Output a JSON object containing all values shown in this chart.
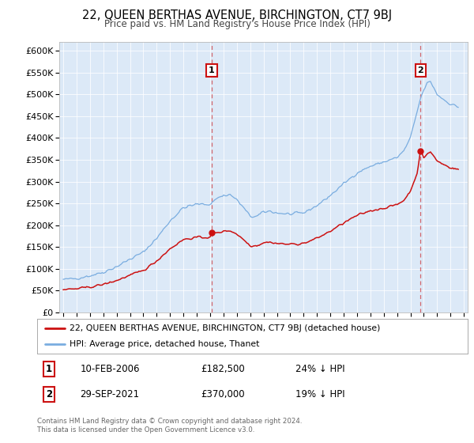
{
  "title": "22, QUEEN BERTHAS AVENUE, BIRCHINGTON, CT7 9BJ",
  "subtitle": "Price paid vs. HM Land Registry's House Price Index (HPI)",
  "background_color": "#dce9f7",
  "ylim": [
    0,
    620000
  ],
  "yticks": [
    0,
    50000,
    100000,
    150000,
    200000,
    250000,
    300000,
    350000,
    400000,
    450000,
    500000,
    550000,
    600000
  ],
  "hpi_color": "#7aade0",
  "price_color": "#cc1111",
  "transaction1": {
    "date": "10-FEB-2006",
    "price": 182500,
    "year": 2006.12,
    "label": "1",
    "pct": "24%",
    "dir": "↓"
  },
  "transaction2": {
    "date": "29-SEP-2021",
    "price": 370000,
    "year": 2021.75,
    "label": "2",
    "pct": "19%",
    "dir": "↓"
  },
  "legend_property": "22, QUEEN BERTHAS AVENUE, BIRCHINGTON, CT7 9BJ (detached house)",
  "legend_hpi": "HPI: Average price, detached house, Thanet",
  "footer": "Contains HM Land Registry data © Crown copyright and database right 2024.\nThis data is licensed under the Open Government Licence v3.0."
}
